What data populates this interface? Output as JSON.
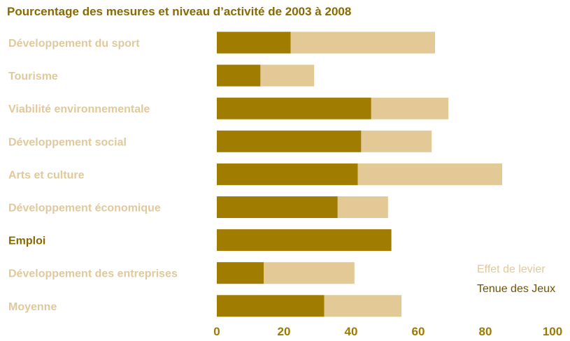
{
  "colors": {
    "title": "#8a6a00",
    "category_label": "#e0c99a",
    "category_label_dark": "#8a6a00",
    "tick_label": "#9c7a00",
    "tenue": "#a07c00",
    "effet": "#e2c996",
    "legend_effet": "#e0c99a",
    "legend_tenue": "#6e5400"
  },
  "chart_data": {
    "type": "bar",
    "orientation": "horizontal",
    "stacked": true,
    "title": "Pourcentage des mesures et niveau d’activité de 2003 à 2008",
    "categories": [
      "Développement du sport",
      "Tourisme",
      "Viabilité environnementale",
      "Développement social",
      "Arts et culture",
      "Développement économique",
      "Emploi",
      "Développement des entreprises",
      "Moyenne"
    ],
    "series": [
      {
        "name": "Tenue des Jeux",
        "values": [
          22,
          13,
          46,
          43,
          42,
          36,
          52,
          14,
          32
        ]
      },
      {
        "name": "Effet de levier",
        "values": [
          43,
          16,
          23,
          21,
          43,
          15,
          0,
          27,
          23
        ]
      }
    ],
    "xlim": [
      0,
      100
    ],
    "xticks": [
      "0",
      "20",
      "40",
      "60",
      "80",
      "100"
    ],
    "grid": false,
    "legend_position": "bottom-right"
  }
}
